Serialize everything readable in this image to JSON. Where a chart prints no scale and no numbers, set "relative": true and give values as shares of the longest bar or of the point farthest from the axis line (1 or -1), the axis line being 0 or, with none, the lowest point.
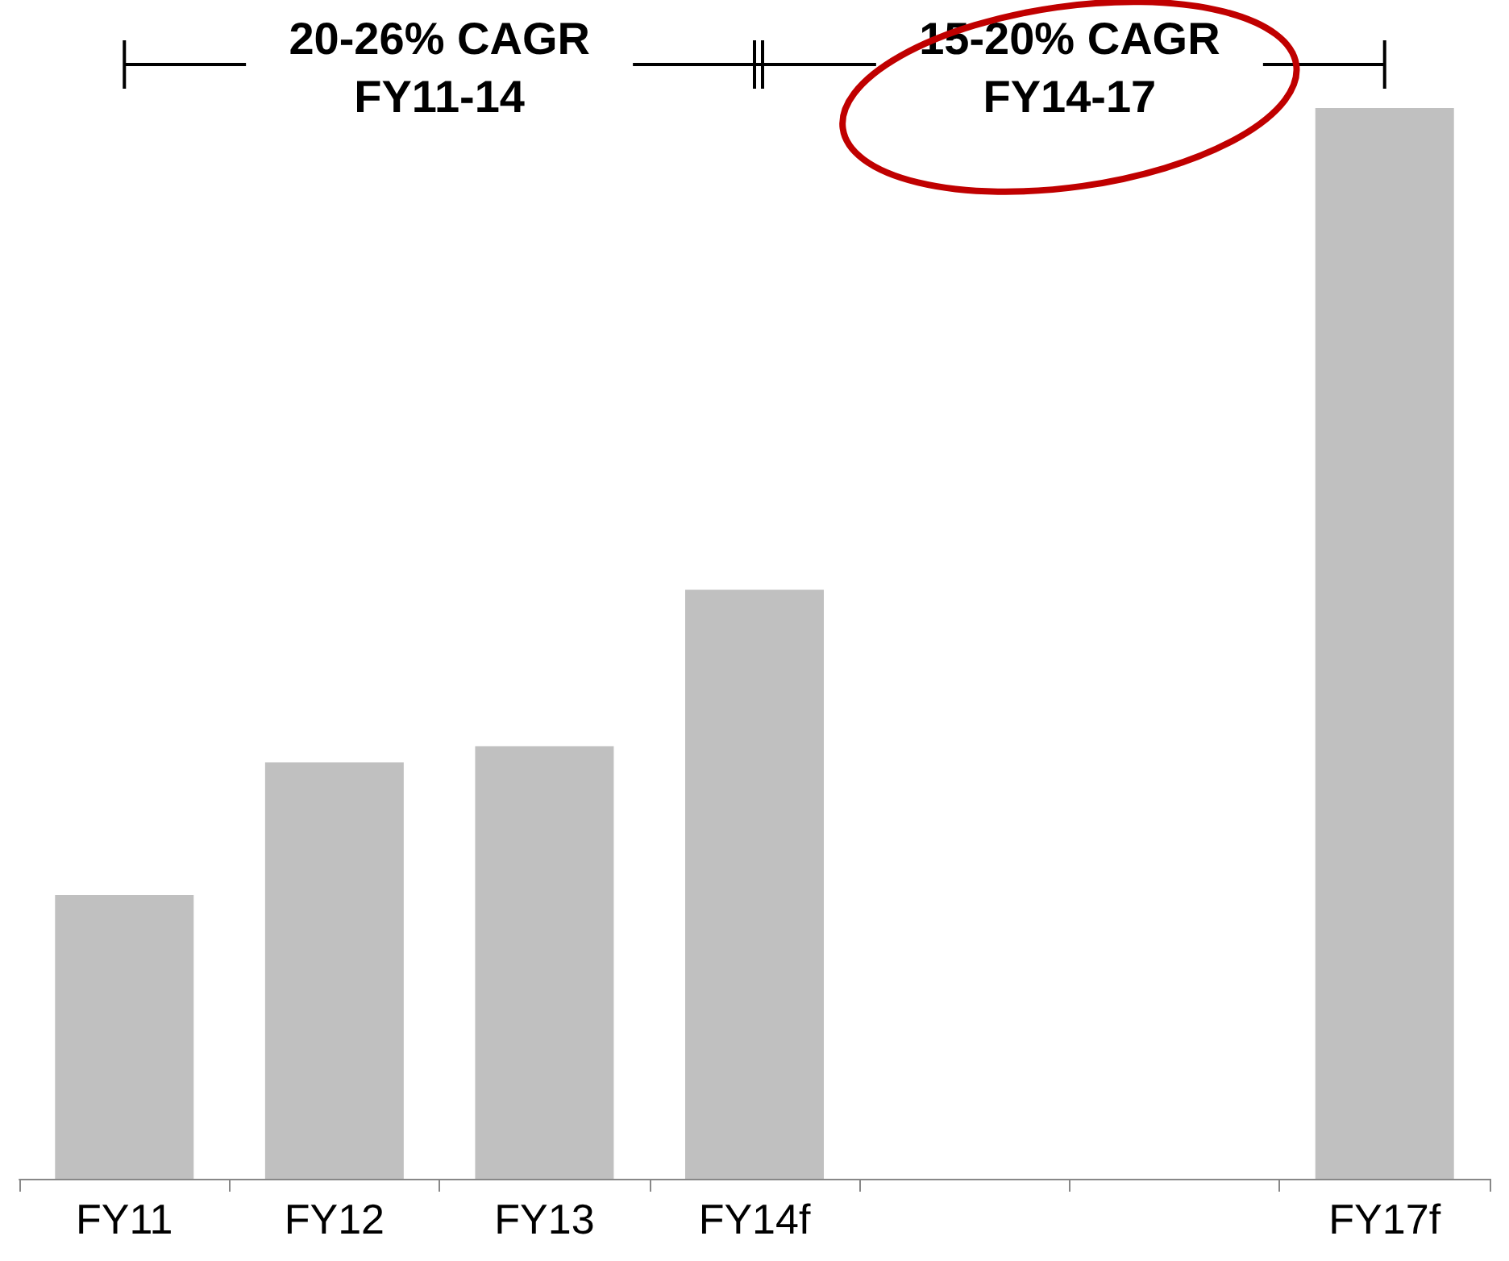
{
  "chart_data": {
    "type": "bar",
    "relative": true,
    "categories": [
      "FY11",
      "FY12",
      "FY13",
      "FY14f",
      null,
      null,
      "FY17f"
    ],
    "values": [
      0.265,
      0.389,
      0.404,
      0.55,
      null,
      null,
      1
    ],
    "color": "#c0c0c0",
    "annotations": [
      "20-26% CAGR\nFY11-14",
      "15-20% CAGR\nFY14-17"
    ]
  }
}
